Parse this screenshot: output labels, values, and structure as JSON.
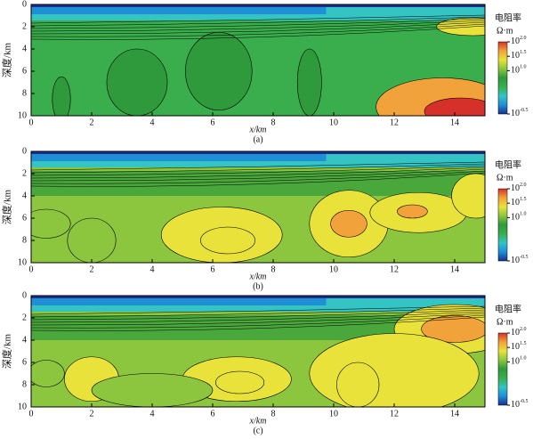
{
  "chart_data": [
    {
      "type": "contour",
      "xlabel": "x/km",
      "ylabel": "深度/km",
      "caption": "(a)",
      "xlim": [
        0,
        15
      ],
      "ylim": [
        10,
        0
      ],
      "xticks": [
        0,
        2,
        4,
        6,
        8,
        10,
        12,
        14
      ],
      "yticks": [
        0,
        2,
        4,
        6,
        8,
        10
      ],
      "colorbar": {
        "title": "电阻率",
        "unit": "Ω·m",
        "zlim": [
          -0.5,
          2.0
        ],
        "ticks": [
          {
            "value": 2.0,
            "label": "10",
            "power": "2.0"
          },
          {
            "value": 1.5,
            "label": "10",
            "power": "1.5"
          },
          {
            "value": 1.0,
            "label": "10",
            "power": "1.0"
          },
          {
            "value": -0.5,
            "label": "10",
            "power": "-0.5"
          }
        ],
        "colors": [
          "#1b2f8c",
          "#1f8fd6",
          "#35c4c4",
          "#3aae4c",
          "#2e9a3c",
          "#8cc63f",
          "#e8e23a",
          "#f2a23a",
          "#d6302a"
        ]
      }
    },
    {
      "type": "contour",
      "xlabel": "x/km",
      "ylabel": "深度/km",
      "caption": "(b)",
      "xlim": [
        0,
        15
      ],
      "ylim": [
        10,
        0
      ],
      "xticks": [
        0,
        2,
        4,
        6,
        8,
        10,
        12,
        14
      ],
      "yticks": [
        0,
        2,
        4,
        6,
        8,
        10
      ],
      "colorbar": {
        "title": "电阻率",
        "unit": "Ω·m",
        "zlim": [
          -0.5,
          2.0
        ],
        "ticks": [
          {
            "value": 2.0,
            "label": "10",
            "power": "2.0"
          },
          {
            "value": 1.5,
            "label": "10",
            "power": "1.5"
          },
          {
            "value": 1.0,
            "label": "10",
            "power": "1.0"
          },
          {
            "value": -0.5,
            "label": "10",
            "power": "-0.5"
          }
        ],
        "colors": [
          "#1b2f8c",
          "#1f8fd6",
          "#35c4c4",
          "#3aae4c",
          "#2e9a3c",
          "#8cc63f",
          "#e8e23a",
          "#f2a23a",
          "#d6302a"
        ]
      }
    },
    {
      "type": "contour",
      "xlabel": "x/km",
      "ylabel": "深度/km",
      "caption": "(c)",
      "xlim": [
        0,
        15
      ],
      "ylim": [
        10,
        0
      ],
      "xticks": [
        0,
        2,
        4,
        6,
        8,
        10,
        12,
        14
      ],
      "yticks": [
        0,
        2,
        4,
        6,
        8,
        10
      ],
      "colorbar": {
        "title": "电阻率",
        "unit": "Ω·m",
        "zlim": [
          -0.5,
          2.0
        ],
        "ticks": [
          {
            "value": 2.0,
            "label": "10",
            "power": "2.0"
          },
          {
            "value": 1.5,
            "label": "10",
            "power": "1.5"
          },
          {
            "value": 1.0,
            "label": "10",
            "power": "1.0"
          },
          {
            "value": -0.5,
            "label": "10",
            "power": "-0.5"
          }
        ],
        "colors": [
          "#1b2f8c",
          "#1f8fd6",
          "#35c4c4",
          "#3aae4c",
          "#2e9a3c",
          "#8cc63f",
          "#e8e23a",
          "#f2a23a",
          "#d6302a"
        ]
      }
    }
  ]
}
